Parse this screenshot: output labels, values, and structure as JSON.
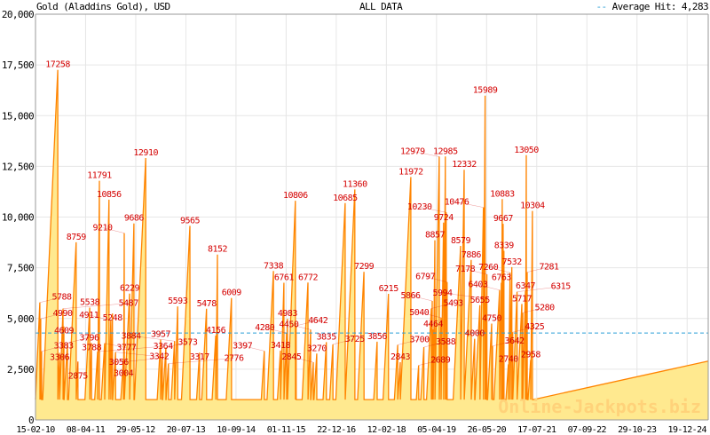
{
  "chart_data": {
    "type": "area",
    "title": "Gold (Aladdins Gold), USD",
    "subtitle": "ALL DATA",
    "legend": {
      "label": "Average Hit: 4,283",
      "placement": "top-right"
    },
    "average_hit": 4283,
    "baseline_value": 1000,
    "xlim": [
      2010.12,
      2025.5
    ],
    "ylim": [
      0,
      20000
    ],
    "y_ticks": [
      0,
      2500,
      5000,
      7500,
      10000,
      12500,
      15000,
      17500,
      20000
    ],
    "y_tick_labels": [
      "0",
      "2,500",
      "5,000",
      "7,500",
      "10,000",
      "12,500",
      "15,000",
      "17,500",
      "20,000"
    ],
    "x_tick_labels": [
      "15-02-10",
      "08-04-11",
      "29-05-12",
      "20-07-13",
      "10-09-14",
      "01-11-15",
      "22-12-16",
      "12-02-18",
      "05-04-19",
      "26-05-20",
      "17-07-21",
      "07-09-22",
      "29-10-23",
      "19-12-24"
    ],
    "x_tick_start": 2010.12,
    "x_tick_step_years": 1.146,
    "grid": true,
    "hits": [
      [
        2010.22,
        5788
      ],
      [
        2010.24,
        4990
      ],
      [
        2010.26,
        3383
      ],
      [
        2010.63,
        17258
      ],
      [
        2010.67,
        3306
      ],
      [
        2010.75,
        5487
      ],
      [
        2010.77,
        4609
      ],
      [
        2010.85,
        3796
      ],
      [
        2011.05,
        8759
      ],
      [
        2011.09,
        2875
      ],
      [
        2011.36,
        5538
      ],
      [
        2011.4,
        3788
      ],
      [
        2011.54,
        3364
      ],
      [
        2011.58,
        11791
      ],
      [
        2011.7,
        3777
      ],
      [
        2011.8,
        10856
      ],
      [
        2011.84,
        4911
      ],
      [
        2011.88,
        5248
      ],
      [
        2011.95,
        3342
      ],
      [
        2012.13,
        3004
      ],
      [
        2012.15,
        9210
      ],
      [
        2012.27,
        6229
      ],
      [
        2012.37,
        9686
      ],
      [
        2012.64,
        12910
      ],
      [
        2012.98,
        3957
      ],
      [
        2013.02,
        3056
      ],
      [
        2013.1,
        3573
      ],
      [
        2013.16,
        2776
      ],
      [
        2013.3,
        3884
      ],
      [
        2013.37,
        5593
      ],
      [
        2013.65,
        9565
      ],
      [
        2013.87,
        3317
      ],
      [
        2014.03,
        5478
      ],
      [
        2014.24,
        4156
      ],
      [
        2014.28,
        8152
      ],
      [
        2014.6,
        6009
      ],
      [
        2015.35,
        3397
      ],
      [
        2015.56,
        7338
      ],
      [
        2015.72,
        3418
      ],
      [
        2015.8,
        6761
      ],
      [
        2015.86,
        4280
      ],
      [
        2015.88,
        4983
      ],
      [
        2016.06,
        10806
      ],
      [
        2016.08,
        4642
      ],
      [
        2016.35,
        6772
      ],
      [
        2016.41,
        4450
      ],
      [
        2016.47,
        2845
      ],
      [
        2016.55,
        3270
      ],
      [
        2016.77,
        3835
      ],
      [
        2016.92,
        3725
      ],
      [
        2017.2,
        10685
      ],
      [
        2017.42,
        11360
      ],
      [
        2017.63,
        7299
      ],
      [
        2017.93,
        3856
      ],
      [
        2018.19,
        6215
      ],
      [
        2018.4,
        3700
      ],
      [
        2018.46,
        2843
      ],
      [
        2018.7,
        11972
      ],
      [
        2018.88,
        2689
      ],
      [
        2019.0,
        3588
      ],
      [
        2019.17,
        5493
      ],
      [
        2019.19,
        5866
      ],
      [
        2019.21,
        4464
      ],
      [
        2019.25,
        8857
      ],
      [
        2019.35,
        12979
      ],
      [
        2019.39,
        5040
      ],
      [
        2019.45,
        9724
      ],
      [
        2019.49,
        12985
      ],
      [
        2019.51,
        10230
      ],
      [
        2019.53,
        6797
      ],
      [
        2019.84,
        8579
      ],
      [
        2019.92,
        12332
      ],
      [
        2020.08,
        7886
      ],
      [
        2020.16,
        4000
      ],
      [
        2020.28,
        5655
      ],
      [
        2020.36,
        10476
      ],
      [
        2020.4,
        15989
      ],
      [
        2020.42,
        5994
      ],
      [
        2020.44,
        7178
      ],
      [
        2020.55,
        4750
      ],
      [
        2020.57,
        3642
      ],
      [
        2020.73,
        6403
      ],
      [
        2020.77,
        6763
      ],
      [
        2020.79,
        10883
      ],
      [
        2020.81,
        9667
      ],
      [
        2020.83,
        8339
      ],
      [
        2020.93,
        2740
      ],
      [
        2020.97,
        7260
      ],
      [
        2021.01,
        7532
      ],
      [
        2021.03,
        4325
      ],
      [
        2021.13,
        6315
      ],
      [
        2021.24,
        5717
      ],
      [
        2021.26,
        5280
      ],
      [
        2021.32,
        6347
      ],
      [
        2021.34,
        13050
      ],
      [
        2021.36,
        7281
      ],
      [
        2021.44,
        2958
      ],
      [
        2021.48,
        10304
      ]
    ],
    "current_trend": [
      [
        2021.5,
        1000
      ],
      [
        2025.5,
        2900
      ]
    ]
  },
  "watermark": "Online-Jackpots.biz",
  "colors": {
    "line": "#ff8400",
    "fill": "#ffe98f",
    "label": "#d40000",
    "average": "#2a9fd6",
    "grid": "#e6e6e6",
    "axis": "#999999"
  }
}
